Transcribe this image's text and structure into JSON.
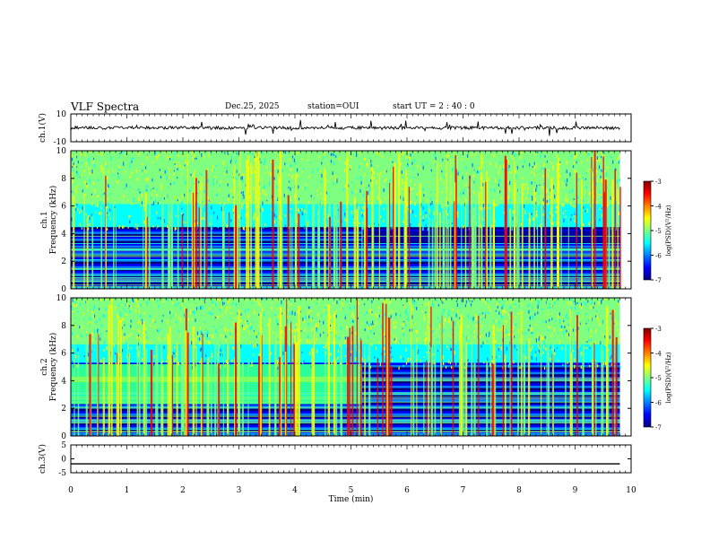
{
  "header": {
    "title": "VLF Spectra",
    "date": "Dec.25, 2025",
    "station": "station=OUI",
    "start": "start  UT =   2 : 40 : 0"
  },
  "chart_data": [
    {
      "type": "line",
      "panel": "ch1-waveform",
      "ylabel": "ch.1(V)",
      "ylim": [
        -10,
        10
      ],
      "yticks": [
        "10",
        "-10"
      ],
      "x_range": [
        0,
        9.8
      ],
      "baseline": 0,
      "color": "#000000"
    },
    {
      "type": "heatmap",
      "panel": "ch1-spectrogram",
      "ylabel": "ch.1\nFrequency (kHz)",
      "ylim": [
        0,
        10
      ],
      "yticks": [
        "0",
        "2",
        "4",
        "6",
        "8",
        "10"
      ],
      "x_range": [
        0,
        9.8
      ],
      "quiet_band_khz": [
        0,
        4.5
      ],
      "quiet_band_upper_after_min": 5.2,
      "colorbar": {
        "label": "log(PSD)(V²/Hz)",
        "range": [
          -7,
          -3
        ],
        "ticks": [
          "-3",
          "-4",
          "-5",
          "-6",
          "-7"
        ]
      }
    },
    {
      "type": "heatmap",
      "panel": "ch2-spectrogram",
      "ylabel": "ch.2\nFrequency (kHz)",
      "ylim": [
        0,
        10
      ],
      "yticks": [
        "0",
        "2",
        "4",
        "6",
        "8",
        "10"
      ],
      "x_range": [
        0,
        9.8
      ],
      "green_band_khz": [
        2.3,
        5.2
      ],
      "green_band_until_min": 5.2,
      "colorbar": {
        "label": "log(PSD)(V²/Hz)",
        "range": [
          -7,
          -3
        ],
        "ticks": [
          "-3",
          "-4",
          "-5",
          "-6",
          "-7"
        ]
      }
    },
    {
      "type": "line",
      "panel": "ch3-waveform",
      "ylabel": "ch.3(V)",
      "ylim": [
        -5,
        5
      ],
      "yticks": [
        "5",
        "0",
        "-5"
      ],
      "x_range": [
        0,
        9.8
      ],
      "values": [
        -1.8,
        -1.8
      ],
      "x": [
        0,
        9.8
      ],
      "color": "#000000"
    }
  ],
  "xaxis": {
    "label": "Time (min)",
    "range": [
      0,
      10
    ],
    "ticks": [
      "0",
      "1",
      "2",
      "3",
      "4",
      "5",
      "6",
      "7",
      "8",
      "9",
      "10"
    ]
  },
  "colors": {
    "jet": [
      "#00007f",
      "#0000ff",
      "#007fff",
      "#00ffff",
      "#7fff7f",
      "#ffff00",
      "#ff7f00",
      "#ff0000",
      "#7f0000"
    ]
  }
}
